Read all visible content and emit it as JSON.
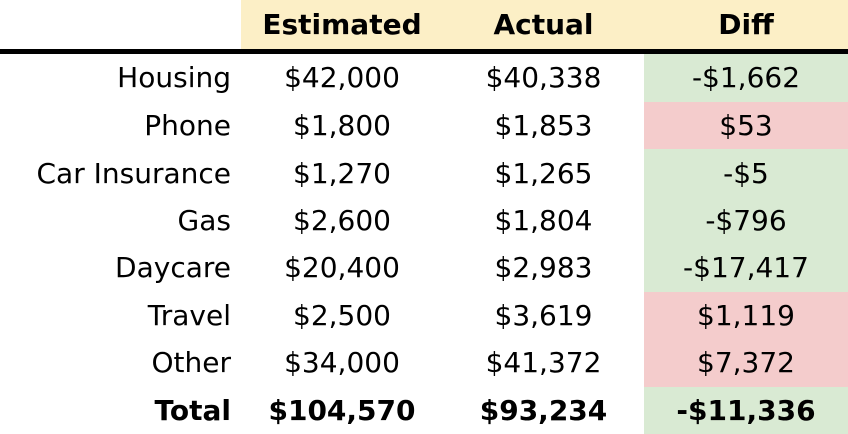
{
  "table": {
    "header": {
      "estimated": "Estimated",
      "actual": "Actual",
      "diff": "Diff"
    },
    "rows": [
      {
        "label": "Housing",
        "estimated": "$42,000",
        "actual": "$40,338",
        "diff": "-$1,662",
        "tone": "green"
      },
      {
        "label": "Phone",
        "estimated": "$1,800",
        "actual": "$1,853",
        "diff": "$53",
        "tone": "red"
      },
      {
        "label": "Car Insurance",
        "estimated": "$1,270",
        "actual": "$1,265",
        "diff": "-$5",
        "tone": "green"
      },
      {
        "label": "Gas",
        "estimated": "$2,600",
        "actual": "$1,804",
        "diff": "-$796",
        "tone": "green"
      },
      {
        "label": "Daycare",
        "estimated": "$20,400",
        "actual": "$2,983",
        "diff": "-$17,417",
        "tone": "green"
      },
      {
        "label": "Travel",
        "estimated": "$2,500",
        "actual": "$3,619",
        "diff": "$1,119",
        "tone": "red"
      },
      {
        "label": "Other",
        "estimated": "$34,000",
        "actual": "$41,372",
        "diff": "$7,372",
        "tone": "red"
      }
    ],
    "total": {
      "label": "Total",
      "estimated": "$104,570",
      "actual": "$93,234",
      "diff": "-$11,336",
      "tone": "green"
    }
  },
  "colors": {
    "header_bg": "#FCEFC6",
    "diff_under_bg": "#D9EAD3",
    "diff_over_bg": "#F4CCCC",
    "rule": "#000000",
    "text": "#000000"
  },
  "chart_data": {
    "type": "table",
    "title": "",
    "columns": [
      "",
      "Estimated",
      "Actual",
      "Diff"
    ],
    "rows": [
      [
        "Housing",
        42000,
        40338,
        -1662
      ],
      [
        "Phone",
        1800,
        1853,
        53
      ],
      [
        "Car Insurance",
        1270,
        1265,
        -5
      ],
      [
        "Gas",
        2600,
        1804,
        -796
      ],
      [
        "Daycare",
        20400,
        2983,
        -17417
      ],
      [
        "Travel",
        2500,
        3619,
        1119
      ],
      [
        "Other",
        34000,
        41372,
        7372
      ],
      [
        "Total",
        104570,
        93234,
        -11336
      ]
    ],
    "layout_hints": {
      "diff_negative_bg": "#D9EAD3",
      "diff_positive_bg": "#F4CCCC",
      "header_bg": "#FCEFC6",
      "total_row_bold": true,
      "grid": "off",
      "header_rule": "thick-black"
    }
  }
}
